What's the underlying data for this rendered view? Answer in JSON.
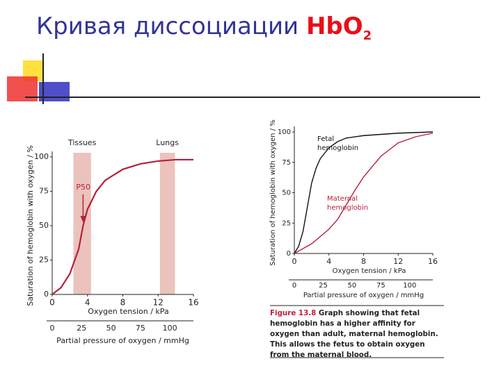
{
  "slide": {
    "title": "Кривая диссоциации",
    "title_formula": "HbO",
    "title_subscript": "2"
  },
  "chart_data": [
    {
      "type": "line",
      "x_label": "Oxygen tension / kPa",
      "y_label": "Saturation of hemoglobin with oxygen / %",
      "x2_label": "Partial pressure of oxygen / mmHg",
      "xlim": [
        0,
        16
      ],
      "ylim": [
        0,
        100
      ],
      "xticks": [
        0,
        4,
        8,
        12,
        16
      ],
      "yticks": [
        0,
        25,
        50,
        75,
        100
      ],
      "x2lim": [
        0,
        120
      ],
      "x2ticks": [
        0,
        25,
        50,
        75,
        100
      ],
      "x": [
        0,
        1,
        2,
        3,
        3.5,
        4,
        5,
        6,
        8,
        10,
        12,
        14,
        16
      ],
      "values": [
        0,
        5,
        15,
        33,
        50,
        62,
        75,
        83,
        91,
        95,
        97,
        98,
        98
      ],
      "color": "#b5203c",
      "bands": [
        {
          "label": "Tissues",
          "x": [
            2.4,
            4.4
          ]
        },
        {
          "label": "Lungs",
          "x": [
            12.2,
            13.9
          ]
        }
      ],
      "band_color": "#ecc2bd",
      "annotation": {
        "text": "P50",
        "x": 3.5,
        "y": 50
      }
    },
    {
      "type": "line",
      "x_label": "Oxygen tension / kPa",
      "y_label": "Saturation of hemoglobin with oxygen / %",
      "x2_label": "Partial pressure of oxygen / mmHg",
      "xlim": [
        0,
        16
      ],
      "ylim": [
        0,
        100
      ],
      "xticks": [
        0,
        4,
        8,
        12,
        16
      ],
      "yticks": [
        0,
        25,
        50,
        75,
        100
      ],
      "x2lim": [
        0,
        120
      ],
      "x2ticks": [
        0,
        25,
        50,
        75,
        100
      ],
      "series": [
        {
          "name": "Fetal hemoglobin",
          "color": "#111111",
          "x": [
            0,
            0.5,
            1,
            1.5,
            2,
            2.5,
            3,
            4,
            5,
            6,
            8,
            10,
            12,
            16
          ],
          "values": [
            0,
            6,
            18,
            38,
            58,
            70,
            78,
            87,
            92,
            95,
            97,
            98,
            99,
            100
          ]
        },
        {
          "name": "Maternal hemoglobin",
          "color": "#b5203c",
          "x": [
            0,
            2,
            4,
            5,
            6,
            7,
            8,
            10,
            12,
            14,
            16
          ],
          "values": [
            0,
            8,
            20,
            28,
            40,
            52,
            63,
            80,
            91,
            96,
            99
          ]
        }
      ],
      "caption_label": "Figure 13.8",
      "caption": "Graph showing that fetal hemoglobin has a higher affinity for oxygen than adult, maternal hemoglobin. This allows the fetus to obtain oxygen from the maternal blood."
    }
  ]
}
